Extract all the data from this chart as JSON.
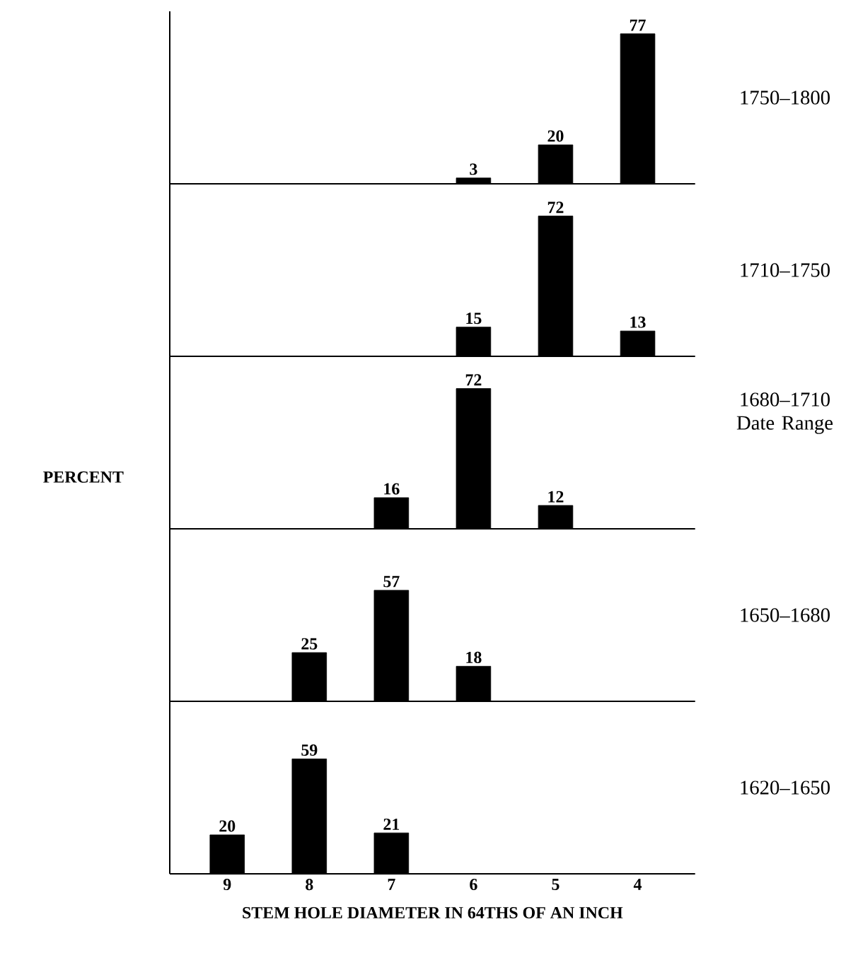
{
  "chart_data": [
    {
      "type": "bar",
      "annotations": [
        "1750–1800"
      ],
      "categories": [
        "9",
        "8",
        "7",
        "6",
        "5",
        "4"
      ],
      "values": [
        null,
        null,
        null,
        3,
        20,
        77
      ],
      "color": "#000000",
      "data_labels": true,
      "tick_labels": false
    },
    {
      "type": "bar",
      "annotations": [
        "1710–1750"
      ],
      "categories": [
        "9",
        "8",
        "7",
        "6",
        "5",
        "4"
      ],
      "values": [
        null,
        null,
        null,
        15,
        72,
        13
      ],
      "color": "#000000",
      "data_labels": true,
      "tick_labels": false
    },
    {
      "type": "bar",
      "ylabel": "PERCENT",
      "annotations": [
        "1680–1710",
        "Date Range"
      ],
      "categories": [
        "9",
        "8",
        "7",
        "6",
        "5",
        "4"
      ],
      "values": [
        null,
        null,
        16,
        72,
        12,
        null
      ],
      "color": "#000000",
      "data_labels": true,
      "tick_labels": false
    },
    {
      "type": "bar",
      "annotations": [
        "1650–1680"
      ],
      "categories": [
        "9",
        "8",
        "7",
        "6",
        "5",
        "4"
      ],
      "values": [
        null,
        25,
        57,
        18,
        null,
        null
      ],
      "color": "#000000",
      "data_labels": true,
      "tick_labels": false
    },
    {
      "type": "bar",
      "xlabel": "STEM HOLE DIAMETER IN 64THS OF AN INCH",
      "annotations": [
        "1620–1650"
      ],
      "categories": [
        "9",
        "8",
        "7",
        "6",
        "5",
        "4"
      ],
      "values": [
        20,
        59,
        21,
        null,
        null,
        null
      ],
      "color": "#000000",
      "data_labels": true,
      "tick_labels": "x"
    }
  ]
}
